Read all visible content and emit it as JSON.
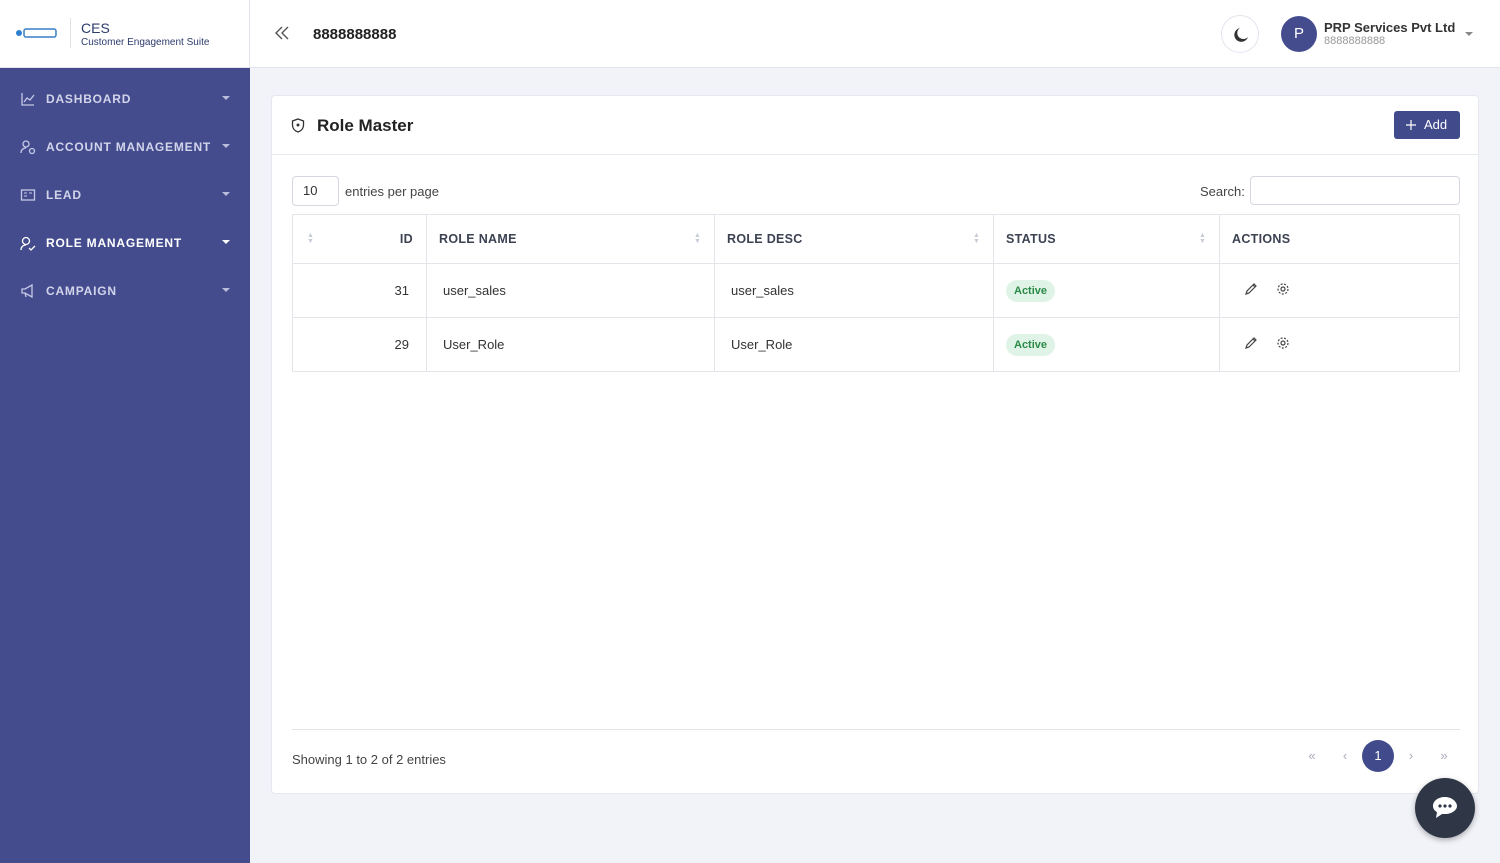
{
  "brand": {
    "title": "CES",
    "subtitle": "Customer Engagement Suite"
  },
  "nav": [
    "DASHBOARD",
    "ACCOUNT MANAGEMENT",
    "LEAD",
    "ROLE MANAGEMENT",
    "CAMPAIGN"
  ],
  "header": {
    "title": "8888888888",
    "user_name": "PRP Services Pvt Ltd",
    "user_phone": "8888888888",
    "avatar": "P"
  },
  "card": {
    "title": "Role Master",
    "add_button": "Add"
  },
  "controls": {
    "page_size": "10",
    "page_size_label": "entries per page",
    "search_label": "Search:"
  },
  "table": {
    "columns": [
      "ID",
      "ROLE NAME",
      "ROLE DESC",
      "STATUS",
      "ACTIONS"
    ],
    "rows": [
      [
        31,
        "user_sales",
        "user_sales",
        "Active"
      ],
      [
        29,
        "User_Role",
        "User_Role",
        "Active"
      ]
    ]
  },
  "footer": {
    "info": "Showing 1 to 2 of 2 entries",
    "pagination": [
      "«",
      "‹",
      "1",
      "›",
      "»"
    ]
  }
}
